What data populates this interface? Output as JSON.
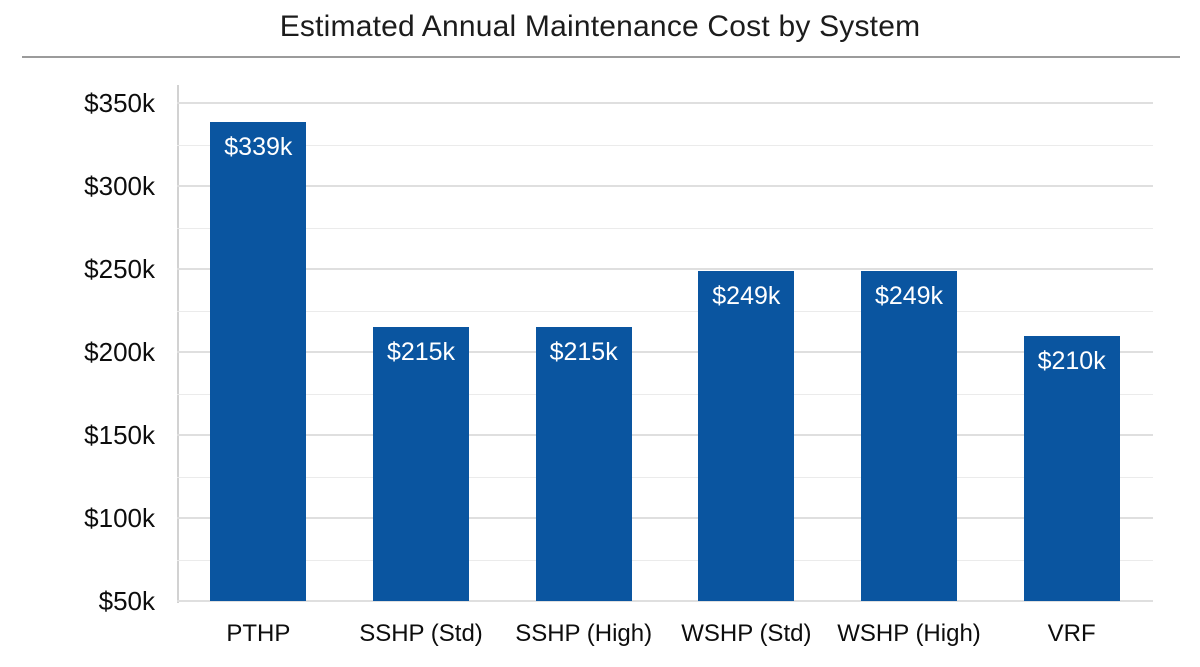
{
  "title": "Estimated Annual Maintenance Cost by System",
  "chart_data": {
    "type": "bar",
    "title": "Estimated Annual Maintenance Cost by System",
    "categories": [
      "PTHP",
      "SSHP (Std)",
      "SSHP (High)",
      "WSHP (Std)",
      "WSHP (High)",
      "VRF"
    ],
    "values": [
      339,
      215,
      215,
      249,
      249,
      210
    ],
    "value_labels": [
      "$339k",
      "$215k",
      "$215k",
      "$249k",
      "$249k",
      "$210k"
    ],
    "xlabel": "",
    "ylabel": "",
    "ylim": [
      50,
      361
    ],
    "y_major_step": 50,
    "y_minor_step": 25,
    "y_tick_labels": [
      "$50k",
      "$100k",
      "$150k",
      "$200k",
      "$250k",
      "$300k",
      "$350k"
    ],
    "grid": "horizontal, major and minor lines",
    "legend": "none",
    "bar_label_position": "inside-top"
  },
  "colors": {
    "bar": "#0a55a0",
    "bar_label_text": "#ffffff",
    "title_text": "#1c1c1c",
    "axis_text": "#0d0d0d",
    "divider": "#9b9b9b",
    "gridline_major": "#dfdfdf",
    "gridline_minor": "#ebebeb",
    "axis_line": "#d2d2d2",
    "background": "#ffffff"
  }
}
